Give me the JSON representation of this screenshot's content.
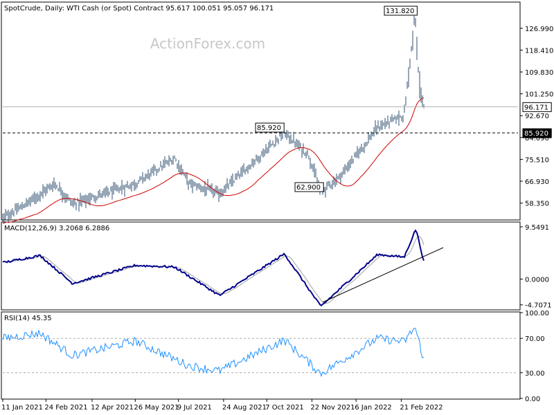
{
  "header": {
    "main": "SpotCrude, Daily:  WTI Cash (or Spot) Contract  95.617 100.051 95.057 96.171",
    "macd": "MACD(12,26,9) 3.2068 6.2886",
    "rsi": "RSI(14) 45.35"
  },
  "watermark": "ActionForex.com",
  "colors": {
    "price": "#2f4f6f",
    "sma": "#cc0000",
    "macd": "#00008b",
    "signal": "#a0a0a0",
    "rsi": "#1e90ff"
  },
  "chart_data": [
    {
      "type": "ohlc-bar",
      "title": "SpotCrude, Daily:  WTI Cash (or Spot) Contract",
      "last": {
        "open": 95.617,
        "high": 100.051,
        "low": 95.057,
        "close": 96.171
      },
      "ylim": [
        52.0,
        137.0
      ],
      "y_ticks": [
        "126.990",
        "118.410",
        "109.830",
        "101.250",
        "92.670",
        "84.090",
        "75.510",
        "66.930",
        "58.350"
      ],
      "annotations": [
        "131.820",
        "85.920",
        "62.900"
      ],
      "price_marker": "96.171",
      "hline_label": "85.920",
      "key_points": [
        {
          "date": "2021-01-11",
          "close": 52.5
        },
        {
          "date": "2021-01-29",
          "close": 56.5
        },
        {
          "date": "2021-03-05",
          "close": 66.0
        },
        {
          "date": "2021-03-23",
          "close": 58.0
        },
        {
          "date": "2021-05-26",
          "close": 66.0
        },
        {
          "date": "2021-07-05",
          "close": 76.0
        },
        {
          "date": "2021-07-20",
          "close": 66.0
        },
        {
          "date": "2021-08-20",
          "close": 62.0
        },
        {
          "date": "2021-10-25",
          "close": 85.92
        },
        {
          "date": "2021-11-19",
          "close": 77.0
        },
        {
          "date": "2021-12-01",
          "close": 62.9
        },
        {
          "date": "2021-12-20",
          "close": 68.5
        },
        {
          "date": "2022-01-28",
          "close": 88.0
        },
        {
          "date": "2022-02-24",
          "close": 93.0
        },
        {
          "date": "2022-03-07",
          "close": 131.82
        },
        {
          "date": "2022-03-11",
          "close": 106.0
        },
        {
          "date": "2022-03-16",
          "close": 96.171
        }
      ],
      "series": [
        {
          "values": "close"
        },
        {
          "values": "moving average"
        }
      ]
    },
    {
      "type": "line",
      "title": "MACD(12,26,9)",
      "values": {
        "macd": 3.2068,
        "signal": 6.2886
      },
      "ylim": [
        -5.5,
        10.3
      ],
      "y_ticks": [
        "9.5491",
        "0.0000",
        "-4.7071"
      ],
      "key_points": [
        {
          "date": "2021-01-11",
          "macd": 3.0
        },
        {
          "date": "2021-02-18",
          "macd": 4.3
        },
        {
          "date": "2021-03-23",
          "macd": -0.8
        },
        {
          "date": "2021-05-26",
          "macd": 2.5
        },
        {
          "date": "2021-07-05",
          "macd": 2.2
        },
        {
          "date": "2021-08-20",
          "macd": -3.0
        },
        {
          "date": "2021-10-25",
          "macd": 4.6
        },
        {
          "date": "2021-12-01",
          "macd": -5.0
        },
        {
          "date": "2022-01-28",
          "macd": 4.5
        },
        {
          "date": "2022-02-24",
          "macd": 4.0
        },
        {
          "date": "2022-03-08",
          "macd": 9.2
        },
        {
          "date": "2022-03-16",
          "macd": 3.2068
        }
      ]
    },
    {
      "type": "line",
      "title": "RSI(14)",
      "last": 45.35,
      "ylim": [
        0,
        100
      ],
      "y_ticks": [
        "100.00",
        "70.00",
        "30.00",
        "0.00"
      ],
      "levels": [
        70,
        30
      ],
      "key_points": [
        {
          "date": "2021-01-11",
          "rsi": 70
        },
        {
          "date": "2021-02-18",
          "rsi": 76
        },
        {
          "date": "2021-03-23",
          "rsi": 50
        },
        {
          "date": "2021-05-26",
          "rsi": 67
        },
        {
          "date": "2021-07-20",
          "rsi": 38
        },
        {
          "date": "2021-08-20",
          "rsi": 32
        },
        {
          "date": "2021-10-25",
          "rsi": 68
        },
        {
          "date": "2021-12-01",
          "rsi": 29
        },
        {
          "date": "2022-01-28",
          "rsi": 70
        },
        {
          "date": "2022-02-24",
          "rsi": 66
        },
        {
          "date": "2022-03-07",
          "rsi": 83
        },
        {
          "date": "2022-03-16",
          "rsi": 45.35
        }
      ]
    }
  ],
  "x_ticks": [
    "11 Jan 2021",
    "24 Feb 2021",
    "12 Apr 2021",
    "26 May 2021",
    "9 Jul 2021",
    "24 Aug 2021",
    "7 Oct 2021",
    "22 Nov 2021",
    "6 Jan 2022",
    "21 Feb 2022"
  ]
}
